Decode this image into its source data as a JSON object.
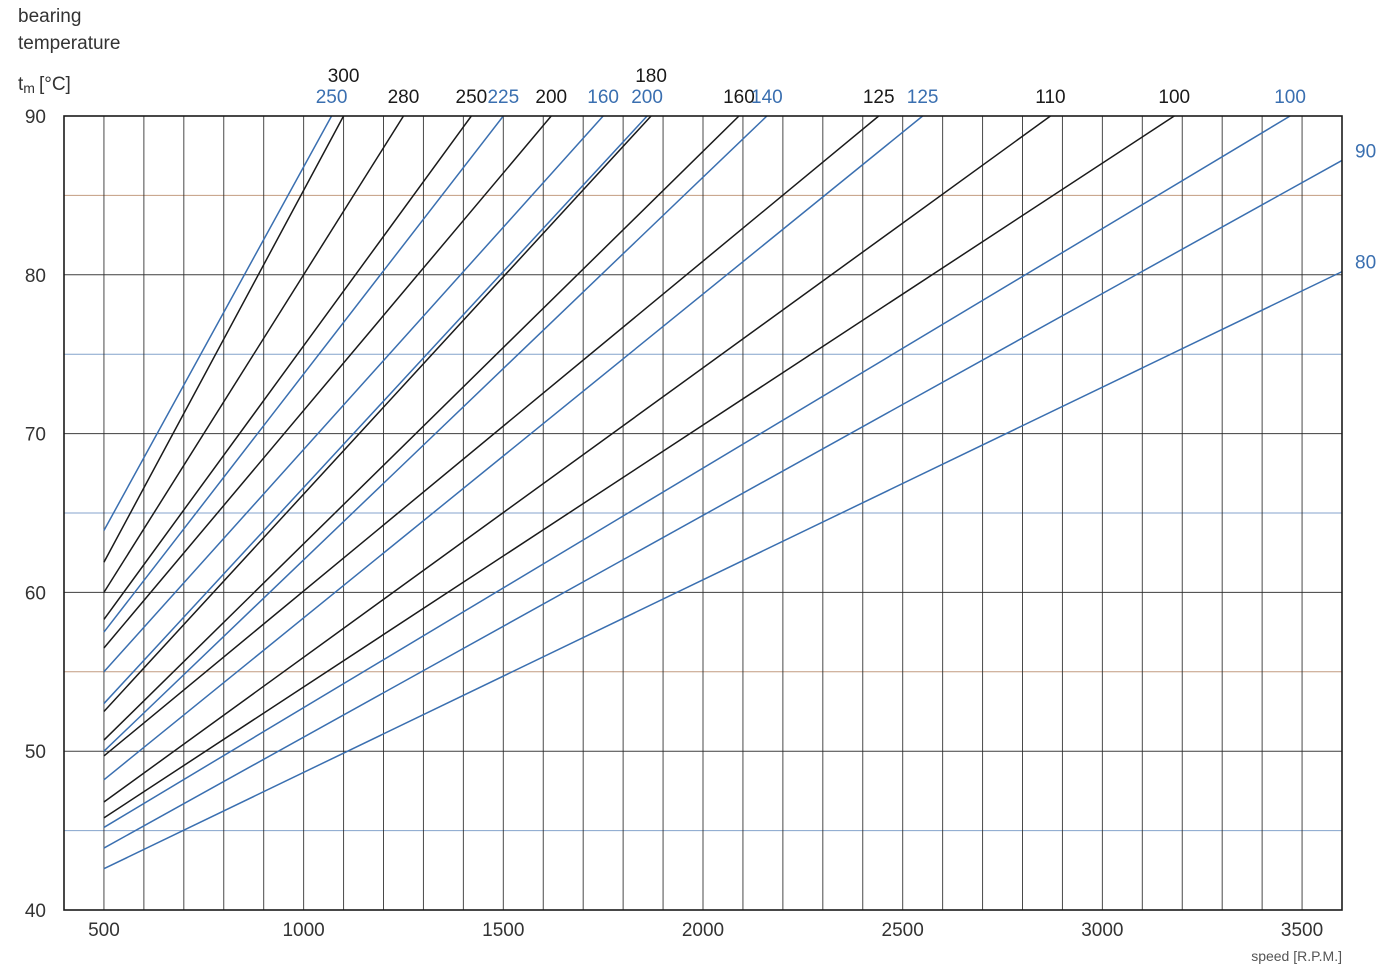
{
  "chart_data": {
    "type": "line",
    "title": "",
    "ylabel_line1": "bearing",
    "ylabel_line2": "temperature",
    "ylabel_symbol": "t",
    "ylabel_subscript": "m",
    "ylabel_unit": "[°C]",
    "xlabel": "speed [R.P.M.]",
    "xlim": [
      400,
      3600
    ],
    "ylim": [
      40,
      90
    ],
    "x_major_ticks": [
      500,
      1000,
      1500,
      2000,
      2500,
      3000,
      3500
    ],
    "x_grid": [
      400,
      500,
      600,
      700,
      800,
      900,
      1000,
      1100,
      1200,
      1300,
      1400,
      1500,
      1600,
      1700,
      1800,
      1900,
      2000,
      2100,
      2200,
      2300,
      2400,
      2500,
      2600,
      2700,
      2800,
      2900,
      3000,
      3100,
      3200,
      3300,
      3400,
      3500,
      3600
    ],
    "y_ticks": [
      40,
      50,
      60,
      70,
      80,
      90
    ],
    "y_grid": [
      40,
      45,
      50,
      55,
      60,
      65,
      70,
      75,
      80,
      85,
      90
    ],
    "grid": true,
    "colors": {
      "black_series": "#1a1a1a",
      "blue_series": "#3a6fb0",
      "grid_vertical": "#2a2a2a",
      "grid_horizontal_blue": "#6f94c4",
      "grid_horizontal_brown": "#b88a6a"
    },
    "series": [
      {
        "name": "250",
        "color": "blue",
        "label_color": "blue",
        "x": [
          500,
          1070
        ],
        "y": [
          63.9,
          90
        ]
      },
      {
        "name": "300",
        "color": "black",
        "label_color": "black",
        "x": [
          500,
          1100
        ],
        "y": [
          61.9,
          90
        ]
      },
      {
        "name": "280",
        "color": "black",
        "label_color": "black",
        "x": [
          500,
          1250
        ],
        "y": [
          60.0,
          90
        ]
      },
      {
        "name": "250",
        "color": "black",
        "label_color": "black",
        "x": [
          500,
          1420
        ],
        "y": [
          58.3,
          90
        ]
      },
      {
        "name": "225",
        "color": "blue",
        "label_color": "blue",
        "x": [
          500,
          1500
        ],
        "y": [
          57.5,
          90
        ]
      },
      {
        "name": "200",
        "color": "black",
        "label_color": "black",
        "x": [
          500,
          1620
        ],
        "y": [
          56.5,
          90
        ]
      },
      {
        "name": "160",
        "color": "blue",
        "label_color": "blue",
        "x": [
          500,
          1750
        ],
        "y": [
          55.0,
          90
        ]
      },
      {
        "name": "200",
        "color": "blue",
        "label_color": "blue",
        "x": [
          500,
          1860
        ],
        "y": [
          53.0,
          90
        ]
      },
      {
        "name": "180",
        "color": "black",
        "label_color": "black",
        "x": [
          500,
          1870
        ],
        "y": [
          52.5,
          90
        ]
      },
      {
        "name": "160",
        "color": "black",
        "label_color": "black",
        "x": [
          500,
          2090
        ],
        "y": [
          50.7,
          90
        ]
      },
      {
        "name": "140",
        "color": "blue",
        "label_color": "blue",
        "x": [
          500,
          2160
        ],
        "y": [
          50.0,
          90
        ]
      },
      {
        "name": "125",
        "color": "black",
        "label_color": "black",
        "x": [
          500,
          2440
        ],
        "y": [
          49.7,
          90
        ]
      },
      {
        "name": "125",
        "color": "blue",
        "label_color": "blue",
        "x": [
          500,
          2550
        ],
        "y": [
          48.2,
          90
        ]
      },
      {
        "name": "110",
        "color": "black",
        "label_color": "black",
        "x": [
          500,
          2870
        ],
        "y": [
          46.8,
          90
        ]
      },
      {
        "name": "100",
        "color": "black",
        "label_color": "black",
        "x": [
          500,
          3180
        ],
        "y": [
          45.8,
          90
        ]
      },
      {
        "name": "100",
        "color": "blue",
        "label_color": "blue",
        "x": [
          500,
          3470
        ],
        "y": [
          45.2,
          90
        ]
      },
      {
        "name": "90",
        "color": "blue",
        "label_color": "blue",
        "x": [
          500,
          3600
        ],
        "y": [
          43.9,
          87.2
        ]
      },
      {
        "name": "80",
        "color": "blue",
        "label_color": "blue",
        "x": [
          500,
          3600
        ],
        "y": [
          42.6,
          80.2
        ]
      }
    ]
  }
}
